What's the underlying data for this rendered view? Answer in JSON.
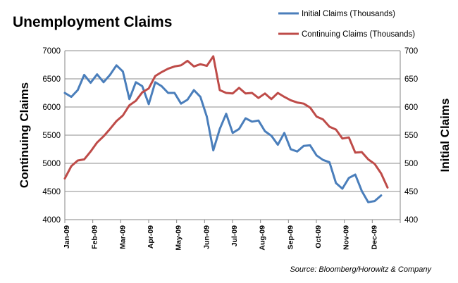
{
  "colors": {
    "initial": "#4a7ebb",
    "continuing": "#be4b48",
    "grid": "#8c8c8c",
    "axis": "#868686"
  },
  "chart_data": {
    "type": "line",
    "title": "Unemployment Claims",
    "source": "Source: Bloomberg/Horowitz & Company",
    "legend_position": "top-right",
    "grid": true,
    "x_tick_labels": [
      "Jan-09",
      "Feb-09",
      "Mar-09",
      "Apr-09",
      "May-09",
      "Jun-09",
      "Jul-09",
      "Aug-09",
      "Sep-09",
      "Oct-09",
      "Nov-09",
      "Dec-09"
    ],
    "weeks_per_month": 4.33,
    "y_left": {
      "label": "Continuing Claims",
      "min": 4000,
      "max": 7000,
      "step": 500,
      "ticks": [
        "4000",
        "4500",
        "5000",
        "5500",
        "6000",
        "6500",
        "7000"
      ]
    },
    "y_right": {
      "label": "Initial Claims",
      "min": 400,
      "max": 700,
      "step": 50,
      "ticks": [
        "400",
        "450",
        "500",
        "550",
        "600",
        "650",
        "700"
      ]
    },
    "series": [
      {
        "name": "Initial Claims  (Thousands)",
        "axis": "right",
        "color": "#4a7ebb",
        "values": [
          625,
          618,
          630,
          657,
          643,
          658,
          644,
          657,
          674,
          663,
          614,
          644,
          637,
          605,
          644,
          637,
          625,
          625,
          606,
          613,
          630,
          618,
          583,
          523,
          561,
          588,
          554,
          561,
          580,
          574,
          576,
          557,
          549,
          533,
          554,
          525,
          521,
          531,
          532,
          514,
          506,
          502,
          465,
          455,
          474,
          480,
          451,
          431,
          433,
          443
        ]
      },
      {
        "name": "Continuing Claims  (Thousands)",
        "axis": "left",
        "color": "#be4b48",
        "values": [
          4730,
          4950,
          5050,
          5070,
          5210,
          5370,
          5480,
          5610,
          5750,
          5850,
          6030,
          6110,
          6260,
          6330,
          6550,
          6620,
          6680,
          6720,
          6740,
          6820,
          6720,
          6760,
          6730,
          6900,
          6300,
          6250,
          6240,
          6340,
          6240,
          6250,
          6160,
          6240,
          6140,
          6250,
          6180,
          6120,
          6080,
          6060,
          5990,
          5830,
          5780,
          5650,
          5600,
          5440,
          5460,
          5190,
          5200,
          5070,
          4990,
          4820,
          4570
        ]
      }
    ]
  }
}
